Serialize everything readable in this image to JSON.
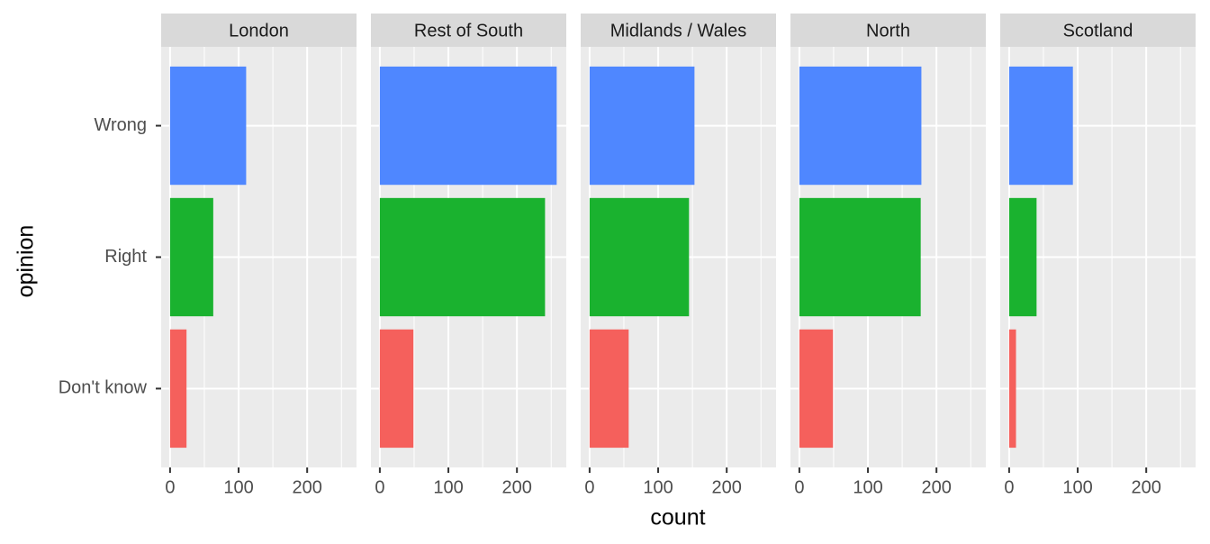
{
  "chart_data": {
    "type": "bar",
    "orientation": "horizontal",
    "xlabel": "count",
    "ylabel": "opinion",
    "categories": [
      "Don't know",
      "Right",
      "Wrong"
    ],
    "colors": [
      "#f5605c",
      "#1ab22f",
      "#4f87ff"
    ],
    "xlim": [
      -13,
      272
    ],
    "xticks": [
      0,
      100,
      200
    ],
    "xminor_ticks": [
      50,
      150,
      250
    ],
    "grid": true,
    "facets": [
      {
        "title": "London",
        "values": [
          24,
          63,
          111
        ]
      },
      {
        "title": "Rest of South",
        "values": [
          49,
          241,
          258
        ]
      },
      {
        "title": "Midlands / Wales",
        "values": [
          57,
          145,
          153
        ]
      },
      {
        "title": "North",
        "values": [
          49,
          177,
          178
        ]
      },
      {
        "title": "Scotland",
        "values": [
          10,
          40,
          93
        ]
      }
    ]
  }
}
